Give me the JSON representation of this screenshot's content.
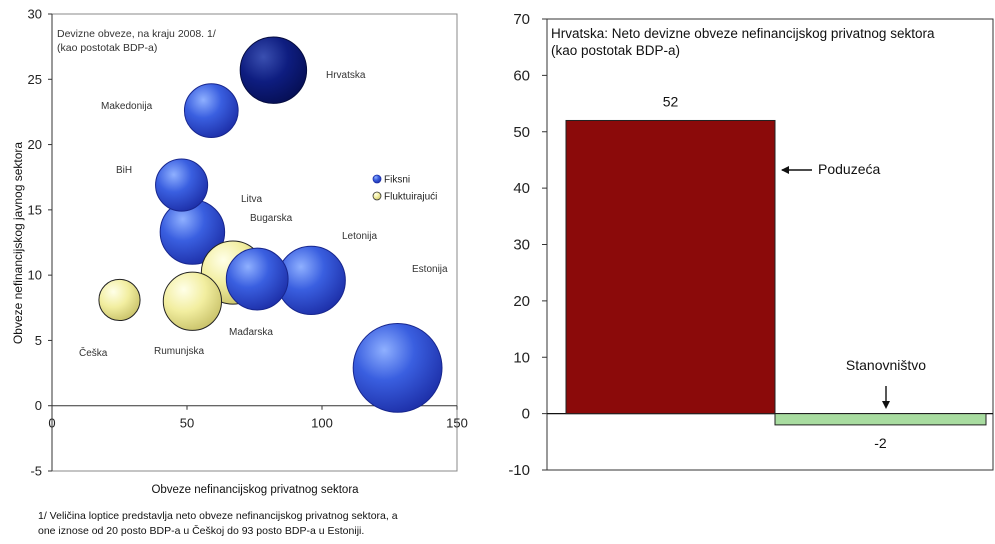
{
  "footnote": [
    "1/ Veličina loptice predstavlja neto obveze nefinancijskog privatnog sektora, a",
    "one iznose od 20 posto BDP-a u Češkoj do 93 posto BDP-a u Estoniji."
  ],
  "chart_data": [
    {
      "type": "scatter",
      "subtype": "bubble",
      "title": "Devizne obveze, na kraju 2008. 1/",
      "subtitle": "(kao postotak BDP-a)",
      "xlabel": "Obveze nefinancijskog privatnog sektora",
      "ylabel": "Obveze nefinancijskog javnog sektora",
      "xlim": [
        0,
        150
      ],
      "ylim": [
        -5,
        30
      ],
      "xticks": [
        0,
        50,
        100,
        150
      ],
      "yticks": [
        -5,
        0,
        5,
        10,
        15,
        20,
        25,
        30
      ],
      "grid": false,
      "legend_position": "right",
      "legend": [
        {
          "label": "Fiksni",
          "color": "#3a5fe0"
        },
        {
          "label": "Fluktuirajući",
          "color": "#f2eea0"
        }
      ],
      "series": [
        {
          "name": "Fiksni",
          "color": "#3a5fe0",
          "points": [
            {
              "label": "Hrvatska",
              "x": 82,
              "y": 25.7,
              "size": 52,
              "color": "#0b1a7a"
            },
            {
              "label": "Makedonija",
              "x": 59,
              "y": 22.6,
              "size": 34
            },
            {
              "label": "BiH",
              "x": 48,
              "y": 16.9,
              "size": 32
            },
            {
              "label": "Bugarska",
              "x": 52,
              "y": 13.3,
              "size": 49
            },
            {
              "label": "Litva",
              "x": 76,
              "y": 9.7,
              "size": 45
            },
            {
              "label": "Letonija",
              "x": 96,
              "y": 9.6,
              "size": 55
            },
            {
              "label": "Estonija",
              "x": 128,
              "y": 2.9,
              "size": 93
            }
          ]
        },
        {
          "name": "Fluktuirajući",
          "color": "#f2eea0",
          "points": [
            {
              "label": "Češka",
              "x": 25,
              "y": 8.1,
              "size": 20
            },
            {
              "label": "Rumunjska",
              "x": 52,
              "y": 8.0,
              "size": 40
            },
            {
              "label": "Mađarska",
              "x": 67,
              "y": 10.2,
              "size": 47
            }
          ]
        }
      ],
      "point_labels": [
        "Hrvatska",
        "Makedonija",
        "BiH",
        "Litva",
        "Bugarska",
        "Letonija",
        "Estonija",
        "Češka",
        "Rumunjska",
        "Mađarska"
      ]
    },
    {
      "type": "bar",
      "title": "Hrvatska: Neto devizne obveze nefinancijskog privatnog sektora",
      "subtitle": "(kao postotak BDP-a)",
      "categories": [
        "Poduzeća",
        "Stanovništvo"
      ],
      "values": [
        52,
        -2
      ],
      "data_labels": [
        "52",
        "-2"
      ],
      "colors": [
        "#8b0a0a",
        "#a8dca0"
      ],
      "ylim": [
        -10,
        70
      ],
      "yticks": [
        -10,
        0,
        10,
        20,
        30,
        40,
        50,
        60,
        70
      ],
      "annotations": [
        "Poduzeća",
        "Stanovništvo"
      ],
      "xlabel": "",
      "ylabel": "",
      "grid": false
    }
  ]
}
